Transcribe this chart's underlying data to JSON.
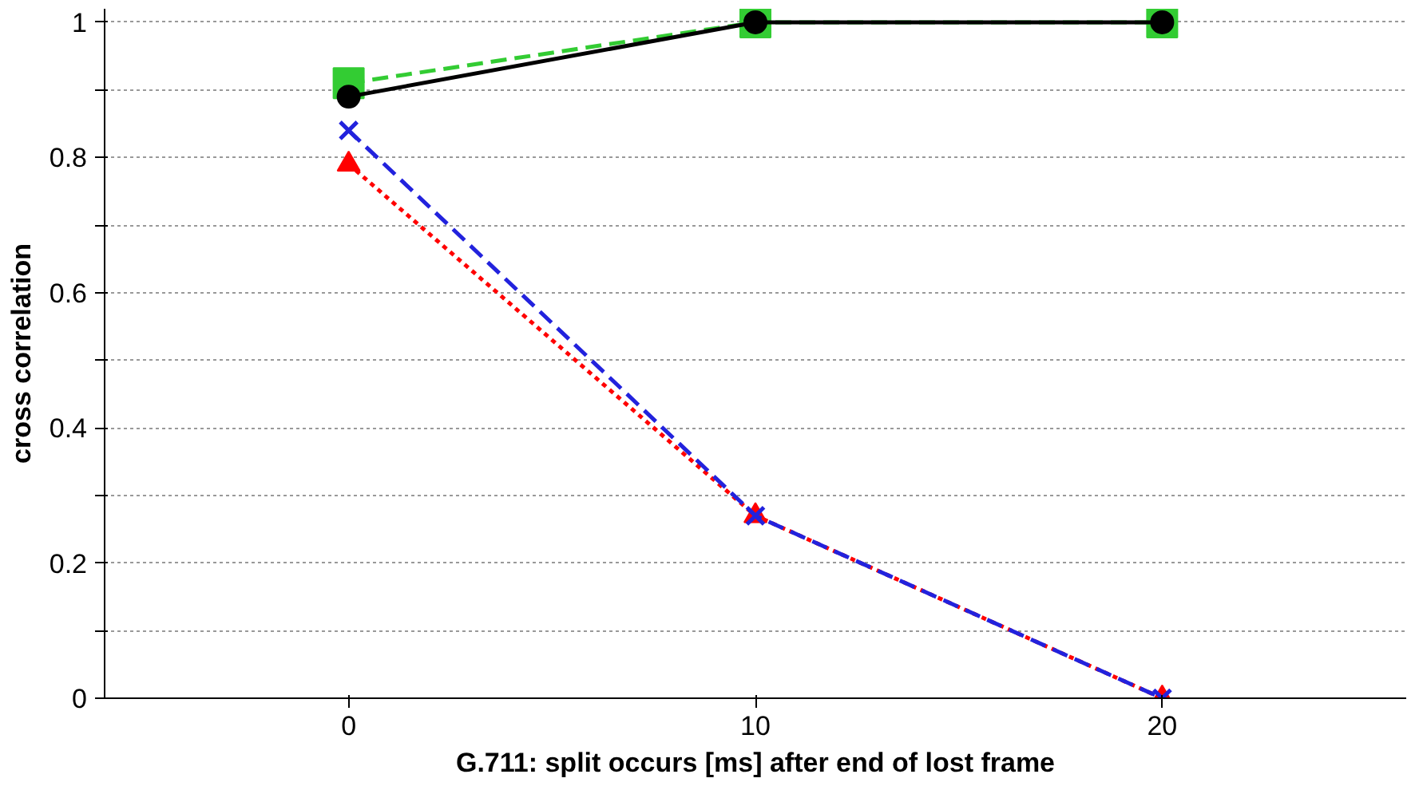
{
  "chart_data": {
    "type": "line",
    "xlabel": "G.711: split occurs [ms] after end of lost frame",
    "ylabel": "cross correlation",
    "categories": [
      "0",
      "10",
      "20"
    ],
    "ylim": [
      0,
      1.02
    ],
    "yticks": [
      0,
      {
        "value": 0.1,
        "label": null
      },
      0.2,
      {
        "value": 0.3,
        "label": null
      },
      0.4,
      {
        "value": 0.5,
        "label": null
      },
      0.6,
      {
        "value": 0.7,
        "label": null
      },
      0.8,
      {
        "value": 0.9,
        "label": null
      },
      1
    ],
    "grid": "y",
    "series": [
      {
        "color": "#33cc33",
        "values": [
          0.91,
          1,
          1
        ],
        "marker": "square",
        "line_style": "dashed"
      },
      {
        "color": "#ff0000",
        "values": [
          0.79,
          0.27,
          0
        ],
        "marker": "triangle",
        "line_style": "dotted"
      },
      {
        "color": "#2222dd",
        "values": [
          0.84,
          0.27,
          0
        ],
        "marker": "cross",
        "line_style": "dashed"
      },
      {
        "color": "#000000",
        "values": [
          0.89,
          1,
          1
        ],
        "marker": "circle",
        "line_style": "solid"
      }
    ]
  }
}
